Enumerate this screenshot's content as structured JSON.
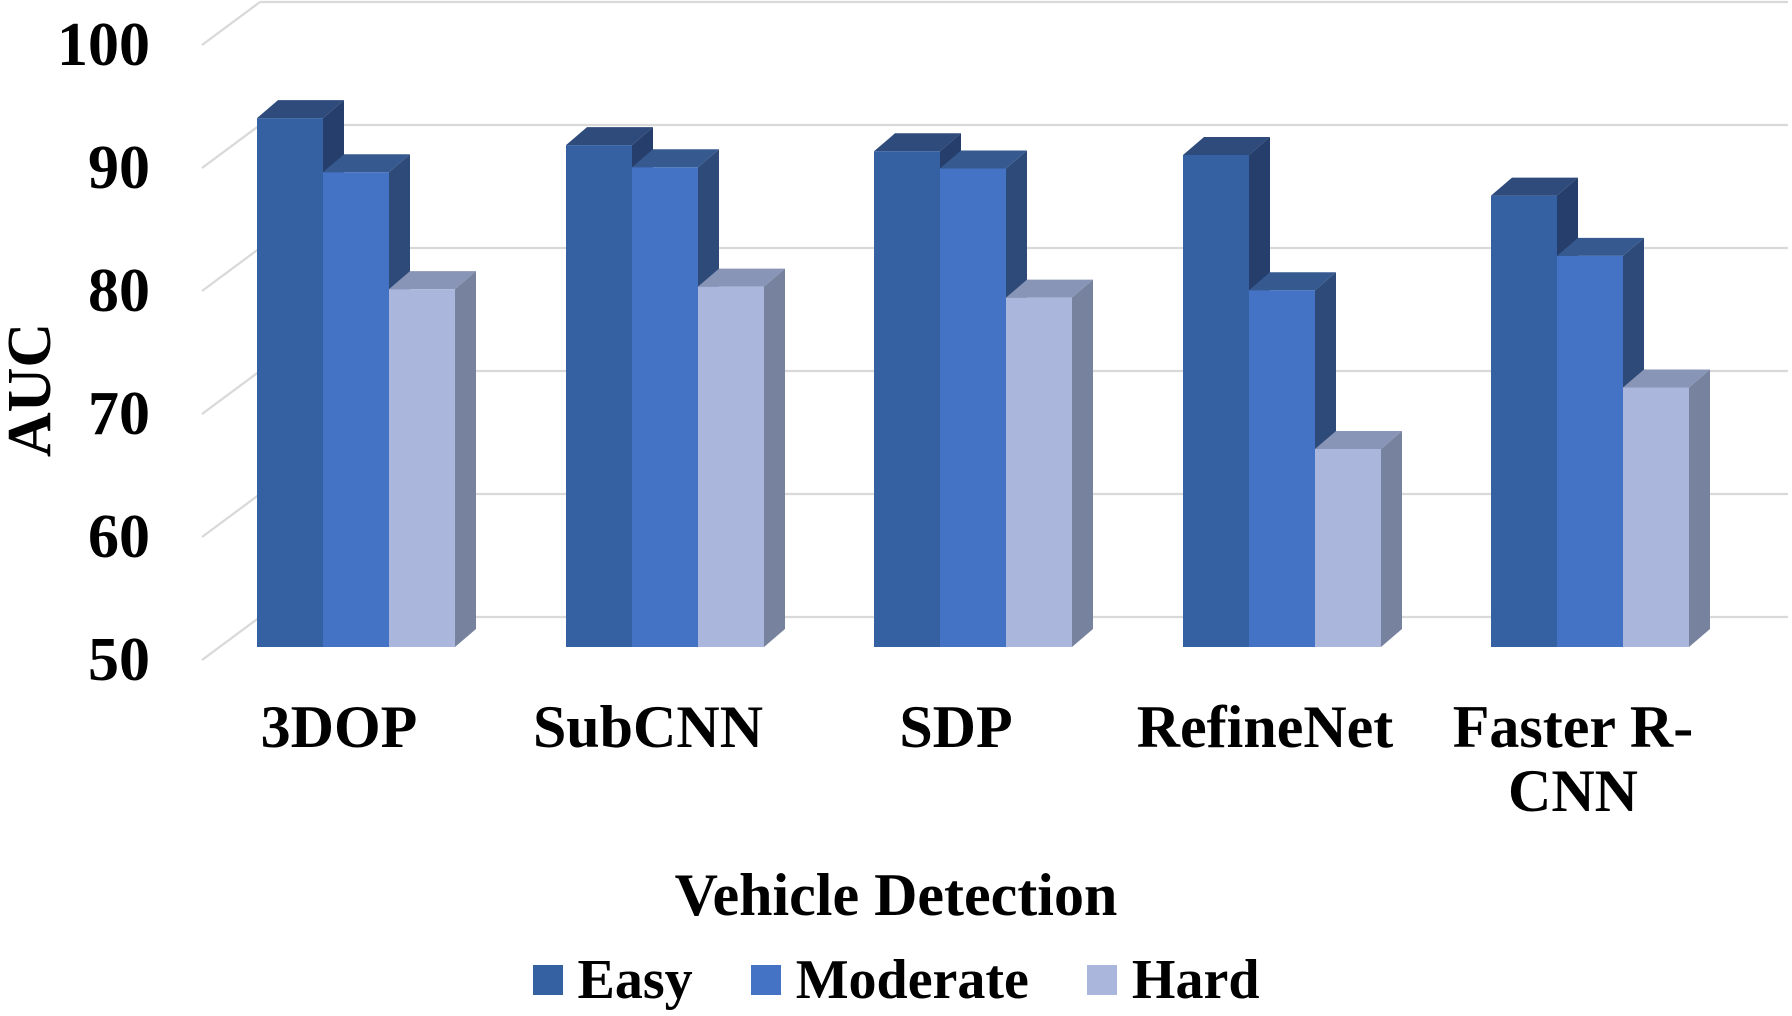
{
  "chart_data": {
    "type": "bar",
    "style": "3d-clustered-column",
    "title": "Vehicle Detection",
    "xlabel": "Vehicle Detection",
    "ylabel": "AUC",
    "ylim": [
      50,
      100
    ],
    "yticks": [
      100,
      90,
      80,
      70,
      60,
      50
    ],
    "grid": true,
    "legend_position": "bottom",
    "categories": [
      "3DOP",
      "SubCNN",
      "SDP",
      "RefineNet",
      "Faster R-CNN"
    ],
    "category_display_lines": [
      [
        "3DOP"
      ],
      [
        "SubCNN"
      ],
      [
        "SDP"
      ],
      [
        "RefineNet"
      ],
      [
        "Faster R-",
        "CNN"
      ]
    ],
    "series": [
      {
        "name": "Easy",
        "values": [
          93.0,
          90.8,
          90.3,
          90.0,
          86.7
        ],
        "color_front": "#3560A1",
        "color_top": "#2F4B7C",
        "color_side": "#253E6B"
      },
      {
        "name": "Moderate",
        "values": [
          88.6,
          89.0,
          88.9,
          79.0,
          81.8
        ],
        "color_front": "#4472C4",
        "color_top": "#365A90",
        "color_side": "#2E4A78"
      },
      {
        "name": "Hard",
        "values": [
          79.1,
          79.3,
          78.4,
          66.1,
          71.1
        ],
        "color_front": "#AAB6DB",
        "color_top": "#8995B7",
        "color_side": "#76829E"
      }
    ],
    "gridline_color": "#D9D9D9",
    "text_color": "#000000",
    "background_color": "#FFFFFF"
  }
}
